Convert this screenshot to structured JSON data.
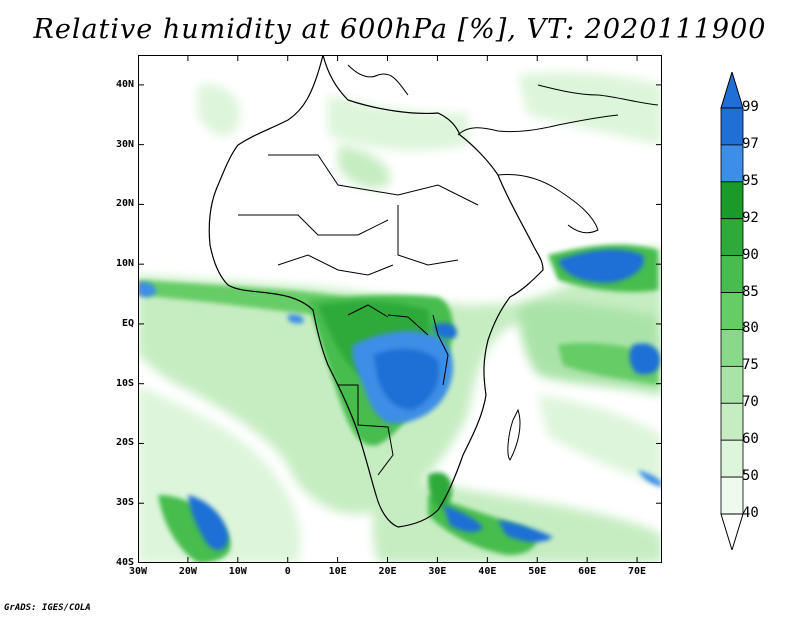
{
  "title": "Relative humidity at 600hPa [%], VT: 2020111900",
  "credit": "GrADS: IGES/COLA",
  "map": {
    "lon_range": [
      -30,
      75
    ],
    "lat_range": [
      -40,
      45
    ],
    "lon_ticks": [
      {
        "value": -30,
        "label": "30W"
      },
      {
        "value": -20,
        "label": "20W"
      },
      {
        "value": -10,
        "label": "10W"
      },
      {
        "value": 0,
        "label": "0"
      },
      {
        "value": 10,
        "label": "10E"
      },
      {
        "value": 20,
        "label": "20E"
      },
      {
        "value": 30,
        "label": "30E"
      },
      {
        "value": 40,
        "label": "40E"
      },
      {
        "value": 50,
        "label": "50E"
      },
      {
        "value": 60,
        "label": "60E"
      },
      {
        "value": 70,
        "label": "70E"
      }
    ],
    "lat_ticks": [
      {
        "value": 40,
        "label": "40N"
      },
      {
        "value": 30,
        "label": "30N"
      },
      {
        "value": 20,
        "label": "20N"
      },
      {
        "value": 10,
        "label": "10N"
      },
      {
        "value": 0,
        "label": "EQ"
      },
      {
        "value": -10,
        "label": "10S"
      },
      {
        "value": -20,
        "label": "20S"
      },
      {
        "value": -30,
        "label": "30S"
      },
      {
        "value": -40,
        "label": "40S"
      }
    ]
  },
  "colorbar": {
    "labels": [
      "99",
      "97",
      "95",
      "92",
      "90",
      "85",
      "80",
      "75",
      "70",
      "60",
      "50",
      "40"
    ],
    "colors": [
      "#1f6fd6",
      "#3d8ee6",
      "#1a9a28",
      "#2eaa3a",
      "#46bd4e",
      "#66cc66",
      "#8ad88a",
      "#aae3a8",
      "#c6edc2",
      "#ddf5da",
      "#effaee"
    ],
    "outline": "#000000"
  }
}
